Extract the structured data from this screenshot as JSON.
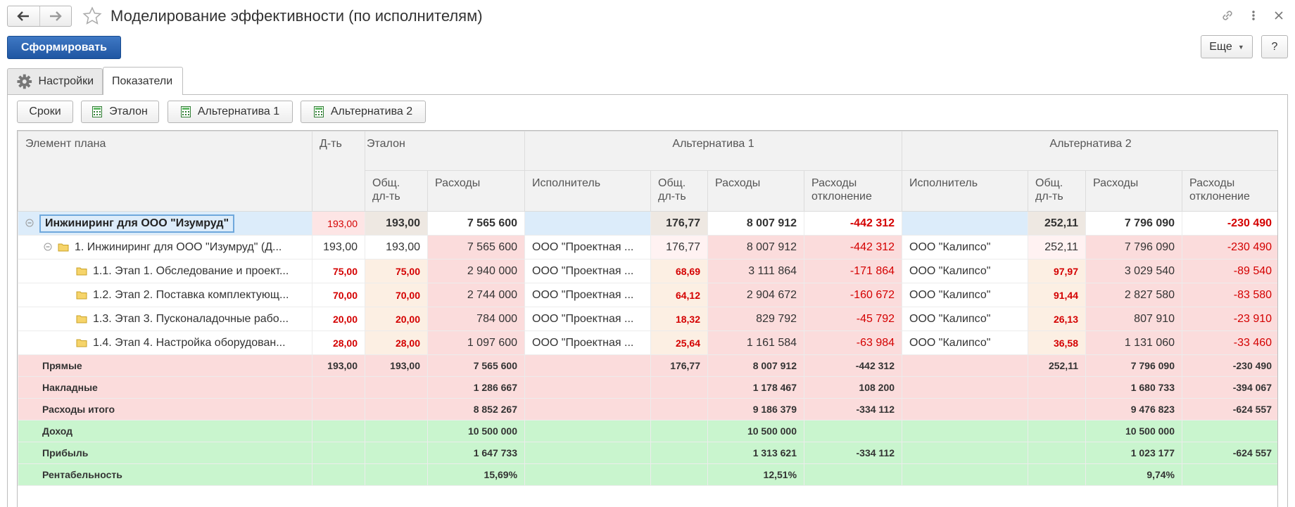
{
  "window": {
    "title": "Моделирование эффективности (по исполнителям)"
  },
  "toolbar": {
    "generate_label": "Сформировать",
    "more_label": "Еще",
    "help_label": "?"
  },
  "tabs": [
    {
      "label": "Настройки",
      "icon": "gear-icon",
      "active": false
    },
    {
      "label": "Показатели",
      "active": true
    }
  ],
  "panel_buttons": {
    "terms": "Сроки",
    "etalon": "Эталон",
    "alt1": "Альтернатива 1",
    "alt2": "Альтернатива 2"
  },
  "grid": {
    "headers": {
      "plan_element": "Элемент плана",
      "duration": "Д-ть",
      "etalon": "Эталон",
      "alt1": "Альтернатива 1",
      "alt2": "Альтернатива 2",
      "total_duration": "Общ.\nдл-ть",
      "expenses": "Расходы",
      "executor": "Исполнитель",
      "expenses_deviation": "Расходы\nотклонение"
    },
    "rows": [
      {
        "name": "Инжиниринг для ООО \"Изумруд\"",
        "dur": "193,00",
        "e_total": "193,00",
        "e_exp": "7 565 600",
        "a1_exec": "",
        "a1_total": "176,77",
        "a1_exp": "8 007 912",
        "a1_dev": "-442 312",
        "a2_exec": "",
        "a2_total": "252,11",
        "a2_exp": "7 796 090",
        "a2_dev": "-230 490"
      },
      {
        "name": "1. Инжиниринг для ООО \"Изумруд\" (Д...",
        "dur": "193,00",
        "e_total": "193,00",
        "e_exp": "7 565 600",
        "a1_exec": "ООО \"Проектная ...",
        "a1_total": "176,77",
        "a1_exp": "8 007 912",
        "a1_dev": "-442 312",
        "a2_exec": "ООО \"Калипсо\"",
        "a2_total": "252,11",
        "a2_exp": "7 796 090",
        "a2_dev": "-230 490"
      },
      {
        "name": "1.1. Этап 1. Обследование и проект...",
        "dur": "75,00",
        "e_total": "75,00",
        "e_exp": "2 940 000",
        "a1_exec": "ООО \"Проектная ...",
        "a1_total": "68,69",
        "a1_exp": "3 111 864",
        "a1_dev": "-171 864",
        "a2_exec": "ООО \"Калипсо\"",
        "a2_total": "97,97",
        "a2_exp": "3 029 540",
        "a2_dev": "-89 540"
      },
      {
        "name": "1.2. Этап 2. Поставка комплектующ...",
        "dur": "70,00",
        "e_total": "70,00",
        "e_exp": "2 744 000",
        "a1_exec": "ООО \"Проектная ...",
        "a1_total": "64,12",
        "a1_exp": "2 904 672",
        "a1_dev": "-160 672",
        "a2_exec": "ООО \"Калипсо\"",
        "a2_total": "91,44",
        "a2_exp": "2 827 580",
        "a2_dev": "-83 580"
      },
      {
        "name": "1.3. Этап 3. Пусконаладочные рабо...",
        "dur": "20,00",
        "e_total": "20,00",
        "e_exp": "784 000",
        "a1_exec": "ООО \"Проектная ...",
        "a1_total": "18,32",
        "a1_exp": "829 792",
        "a1_dev": "-45 792",
        "a2_exec": "ООО \"Калипсо\"",
        "a2_total": "26,13",
        "a2_exp": "807 910",
        "a2_dev": "-23 910"
      },
      {
        "name": "1.4. Этап 4. Настройка оборудован...",
        "dur": "28,00",
        "e_total": "28,00",
        "e_exp": "1 097 600",
        "a1_exec": "ООО \"Проектная ...",
        "a1_total": "25,64",
        "a1_exp": "1 161 584",
        "a1_dev": "-63 984",
        "a2_exec": "ООО \"Калипсо\"",
        "a2_total": "36,58",
        "a2_exp": "1 131 060",
        "a2_dev": "-33 460"
      }
    ],
    "summary": [
      {
        "label": "Прямые",
        "dur": "193,00",
        "e_total": "193,00",
        "e_exp": "7 565 600",
        "a1_total": "176,77",
        "a1_exp": "8 007 912",
        "a1_dev": "-442 312",
        "a2_total": "252,11",
        "a2_exp": "7 796 090",
        "a2_dev": "-230 490"
      },
      {
        "label": "Накладные",
        "e_exp": "1 286 667",
        "a1_exp": "1 178 467",
        "a1_dev": "108 200",
        "a2_exp": "1 680 733",
        "a2_dev": "-394 067"
      },
      {
        "label": "Расходы итого",
        "e_exp": "8 852 267",
        "a1_exp": "9 186 379",
        "a1_dev": "-334 112",
        "a2_exp": "9 476 823",
        "a2_dev": "-624 557"
      },
      {
        "label": "Доход",
        "e_exp": "10 500 000",
        "a1_exp": "10 500 000",
        "a2_exp": "10 500 000"
      },
      {
        "label": "Прибыль",
        "e_exp": "1 647 733",
        "a1_exp": "1 313 621",
        "a1_dev": "-334 112",
        "a2_exp": "1 023 177",
        "a2_dev": "-624 557"
      },
      {
        "label": "Рентабельность",
        "e_exp": "15,69%",
        "a1_exp": "12,51%",
        "a2_exp": "9,74%"
      }
    ]
  },
  "colors": {
    "accent": "#1f56a2",
    "negative": "#d40000",
    "expense_rows": "#fbdcdc",
    "income_rows": "#c9f5ce",
    "selection": "#dcecfa"
  }
}
